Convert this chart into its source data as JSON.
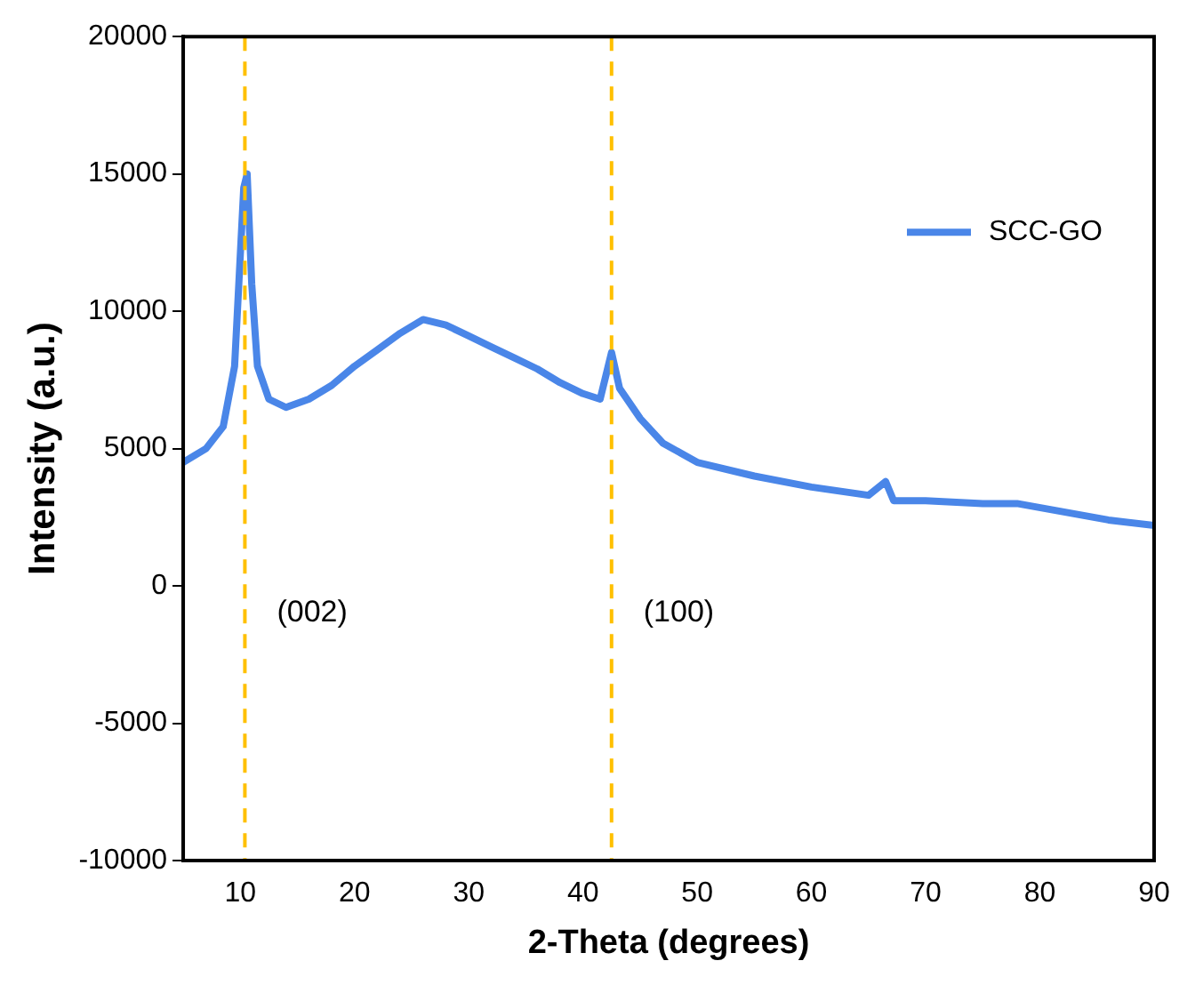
{
  "chart_data": {
    "type": "line",
    "xlabel": "2-Theta (degrees)",
    "ylabel": "Intensity (a.u.)",
    "x": [
      5,
      7,
      8.5,
      9.5,
      10.3,
      10.6,
      11,
      11.5,
      12.5,
      14,
      16,
      18,
      20,
      22,
      24,
      26,
      28,
      30,
      32,
      34,
      36,
      38,
      40,
      41.5,
      42.5,
      43.2,
      45,
      47,
      50,
      55,
      60,
      65,
      66.5,
      67.2,
      70,
      75,
      78,
      82,
      86,
      90
    ],
    "series": [
      {
        "name": "SCC-GO",
        "color": "#4a86e8",
        "values": [
          4500,
          5000,
          5800,
          8000,
          14500,
          15000,
          11000,
          8000,
          6800,
          6500,
          6800,
          7300,
          8000,
          8600,
          9200,
          9700,
          9500,
          9100,
          8700,
          8300,
          7900,
          7400,
          7000,
          6800,
          8500,
          7200,
          6100,
          5200,
          4500,
          4000,
          3600,
          3300,
          3800,
          3100,
          3100,
          3000,
          3000,
          2700,
          2400,
          2200
        ]
      }
    ],
    "xlim": [
      5,
      90
    ],
    "xticks": [
      10,
      20,
      30,
      40,
      50,
      60,
      70,
      80,
      90
    ],
    "ylim": [
      -10000,
      20000
    ],
    "yticks": [
      -10000,
      -5000,
      0,
      5000,
      10000,
      15000,
      20000
    ],
    "ref_lines": [
      {
        "axis": "x",
        "value": 10.4,
        "color": "#ffc000",
        "line_style": "dashed"
      },
      {
        "axis": "x",
        "value": 42.5,
        "color": "#ffc000",
        "line_style": "dashed"
      }
    ],
    "annotations": [
      {
        "text": "(002)",
        "x": 10.4
      },
      {
        "text": "(100)",
        "x": 42.5
      }
    ],
    "grid": false,
    "legend": "top right",
    "marker": "none",
    "line_style": "solid"
  }
}
